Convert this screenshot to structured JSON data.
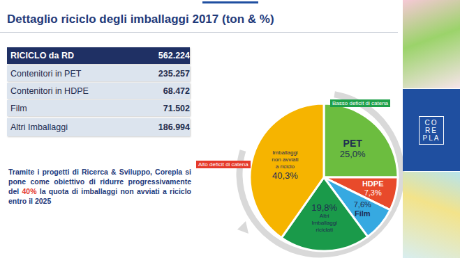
{
  "title": "Dettaglio riciclo degli imballaggi 2017 (ton & %)",
  "table": {
    "rows": [
      [
        "RICICLO da RD",
        "562.224"
      ],
      [
        "Contenitori in PET",
        "235.257"
      ],
      [
        "Contenitori in HDPE",
        "68.472"
      ],
      [
        "Film",
        "71.502"
      ],
      [
        "Altri Imballaggi",
        "186.994"
      ]
    ]
  },
  "note": {
    "text_before": "Tramite i progetti di Ricerca & Sviluppo, Corepla si pone come obiettivo di ridurre progressivamente del ",
    "highlight": "40%",
    "text_after": " la quota di imballaggi non avviati a riciclo entro il 2025"
  },
  "logo": [
    "CO",
    "RE",
    "PLA"
  ],
  "chart_data": {
    "type": "pie",
    "categories": [
      "PET",
      "HDPE",
      "Film",
      "Altri Imballaggi riciclati",
      "Imballaggi non avviati a riciclo"
    ],
    "values": [
      25.0,
      7.3,
      7.6,
      19.8,
      40.3
    ],
    "value_labels": [
      "25,0%",
      "7,3%",
      "7,6%",
      "19,8%",
      "40,3%"
    ],
    "colors": [
      "#6cbd3f",
      "#e84a2b",
      "#36a9e1",
      "#1a9a4a",
      "#f6b400"
    ],
    "data_labels": true,
    "annotations": [
      {
        "text": "Basso deficit di catena",
        "color": "#1fa04a"
      },
      {
        "text": "Alto deficit di catena",
        "color": "#e53a2a"
      }
    ]
  }
}
